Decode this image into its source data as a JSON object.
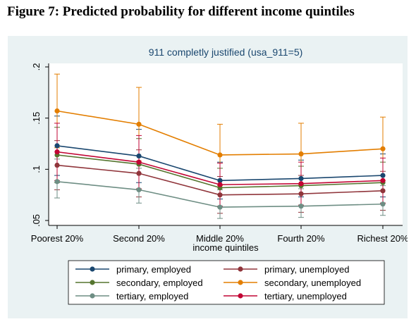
{
  "figure_title": "Figure 7: Predicted probability for different income quintiles",
  "chart_data": {
    "type": "line",
    "title": "911 completly justified (usa_911=5)",
    "xlabel": "income quintiles",
    "ylabel": "",
    "categories": [
      "Poorest 20%",
      "Second 20%",
      "Middle 20%",
      "Fourth 20%",
      "Richest 20%"
    ],
    "yticks": [
      ".05",
      ".1",
      ".15",
      ".2"
    ],
    "ylim": [
      0.05,
      0.2
    ],
    "grid": false,
    "legend_position": "bottom",
    "series": [
      {
        "name": "primary, employed",
        "color": "#1a476f",
        "values": [
          0.123,
          0.113,
          0.089,
          0.091,
          0.094
        ],
        "upper": [
          0.152,
          0.139,
          0.107,
          0.109,
          0.115
        ],
        "lower": [
          0.094,
          0.087,
          0.071,
          0.073,
          0.073
        ]
      },
      {
        "name": "primary, unemployed",
        "color": "#90353b",
        "values": [
          0.104,
          0.096,
          0.075,
          0.076,
          0.079
        ],
        "upper": [
          0.128,
          0.119,
          0.093,
          0.094,
          0.098
        ],
        "lower": [
          0.08,
          0.073,
          0.057,
          0.058,
          0.06
        ]
      },
      {
        "name": "secondary, employed",
        "color": "#55752f",
        "values": [
          0.114,
          0.105,
          0.082,
          0.084,
          0.087
        ],
        "upper": [
          0.141,
          0.13,
          0.101,
          0.103,
          0.107
        ],
        "lower": [
          0.087,
          0.08,
          0.063,
          0.065,
          0.067
        ]
      },
      {
        "name": "secondary, unemployed",
        "color": "#e37e00",
        "values": [
          0.157,
          0.144,
          0.114,
          0.115,
          0.12
        ],
        "upper": [
          0.193,
          0.18,
          0.144,
          0.145,
          0.151
        ],
        "lower": [
          0.121,
          0.108,
          0.084,
          0.085,
          0.089
        ]
      },
      {
        "name": "tertiary, employed",
        "color": "#6e8e84",
        "values": [
          0.088,
          0.08,
          0.063,
          0.064,
          0.066
        ],
        "upper": [
          0.11,
          0.101,
          0.08,
          0.081,
          0.084
        ],
        "lower": [
          0.072,
          0.067,
          0.052,
          0.053,
          0.055
        ]
      },
      {
        "name": "tertiary, unemployed",
        "color": "#c10534",
        "values": [
          0.117,
          0.107,
          0.085,
          0.086,
          0.089
        ],
        "upper": [
          0.145,
          0.133,
          0.106,
          0.107,
          0.111
        ],
        "lower": [
          0.089,
          0.081,
          0.064,
          0.065,
          0.067
        ]
      }
    ]
  }
}
